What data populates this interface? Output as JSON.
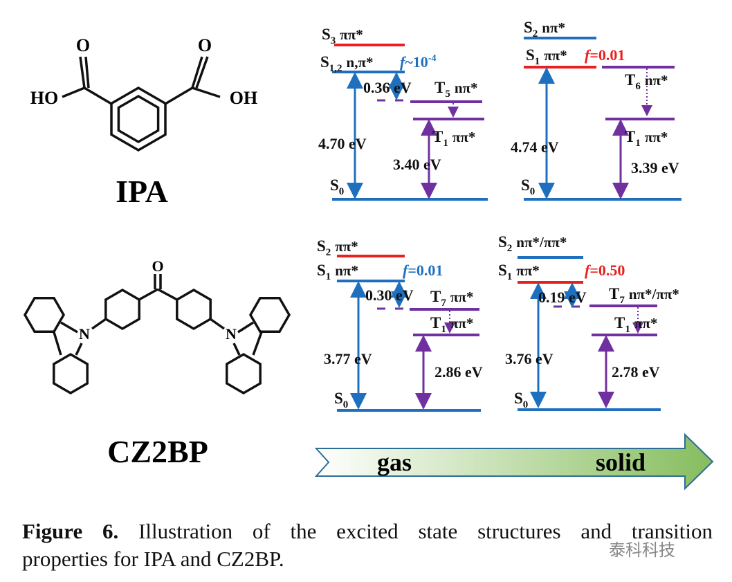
{
  "molecules": [
    {
      "name": "IPA",
      "atoms": [
        "O",
        "HO",
        "O",
        "OH"
      ]
    },
    {
      "name": "CZ2BP",
      "atoms": [
        "O",
        "N",
        "N"
      ]
    }
  ],
  "panels": [
    {
      "states": [
        {
          "s": "S",
          "sub": "3",
          "desc": "ππ*"
        },
        {
          "s": "S",
          "sub": "1,2",
          "desc": "n,π*"
        },
        {
          "s": "T",
          "sub": "5",
          "desc": "nπ*"
        },
        {
          "s": "T",
          "sub": "1",
          "desc": "ππ*"
        },
        {
          "s": "S",
          "sub": "0"
        }
      ],
      "osc": {
        "f": "f",
        "text": "~10",
        "sup": "-4"
      },
      "gaps": [
        "0.36 eV",
        "4.70 eV",
        "3.40 eV"
      ]
    },
    {
      "states": [
        {
          "s": "S",
          "sub": "2",
          "desc": "nπ*"
        },
        {
          "s": "S",
          "sub": "1",
          "desc": "ππ*"
        },
        {
          "s": "T",
          "sub": "6",
          "desc": "nπ*"
        },
        {
          "s": "T",
          "sub": "1",
          "desc": "ππ*"
        },
        {
          "s": "S",
          "sub": "0"
        }
      ],
      "osc": {
        "f": "f",
        "text": "=0.01"
      },
      "gaps": [
        "4.74 eV",
        "3.39 eV"
      ]
    },
    {
      "states": [
        {
          "s": "S",
          "sub": "2",
          "desc": "ππ*"
        },
        {
          "s": "S",
          "sub": "1",
          "desc": "nπ*"
        },
        {
          "s": "T",
          "sub": "7",
          "desc": "ππ*"
        },
        {
          "s": "T",
          "sub": "1",
          "desc": "ππ*"
        },
        {
          "s": "S",
          "sub": "0"
        }
      ],
      "osc": {
        "f": "f",
        "text": "=0.01"
      },
      "gaps": [
        "0.30 eV",
        "3.77 eV",
        "2.86 eV"
      ]
    },
    {
      "states": [
        {
          "s": "S",
          "sub": "2",
          "desc": "nπ*/ππ*"
        },
        {
          "s": "S",
          "sub": "1",
          "desc": "ππ*"
        },
        {
          "s": "T",
          "sub": "7",
          "desc": "nπ*/ππ*"
        },
        {
          "s": "T",
          "sub": "1",
          "desc": "ππ*"
        },
        {
          "s": "S",
          "sub": "0"
        }
      ],
      "osc": {
        "f": "f",
        "text": "=0.50"
      },
      "gaps": [
        "0.19 eV",
        "3.76 eV",
        "2.78 eV"
      ]
    }
  ],
  "arrow": {
    "left": "gas",
    "right": "solid"
  },
  "caption": {
    "label": "Figure 6.",
    "lines": [
      "Illustration of the excited state structures and transition",
      "properties for IPA and CZ2BP."
    ]
  },
  "watermark": "泰科科技"
}
